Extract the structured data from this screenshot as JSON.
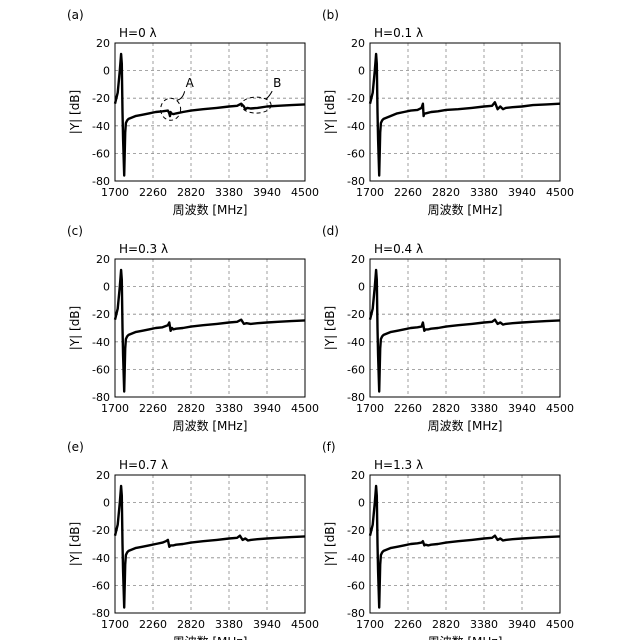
{
  "chart_data": [
    {
      "type": "line",
      "panel_label": "(a)",
      "title": "H=0 λ",
      "xlabel": "周波数 [MHz]",
      "ylabel": "|Y| [dB]",
      "xlim": [
        1700,
        4500
      ],
      "ylim": [
        -80,
        20
      ],
      "xticks": [
        "1700",
        "2260",
        "2820",
        "3380",
        "3940",
        "4500"
      ],
      "yticks": [
        "20",
        "0",
        "-20",
        "-40",
        "-60",
        "-80"
      ],
      "grid": true,
      "annotations": [
        {
          "label": "A",
          "x": 2520,
          "y": -28
        },
        {
          "label": "B",
          "x": 3780,
          "y": -25
        }
      ],
      "series": [
        {
          "x": [
            1700,
            1740,
            1770,
            1790,
            1800,
            1805,
            1810,
            1820,
            1835,
            1850,
            1860,
            1880,
            1900,
            1950,
            2000,
            2100,
            2200,
            2300,
            2400,
            2480,
            2500,
            2510,
            2520,
            2530,
            2560,
            2600,
            2700,
            2820,
            3000,
            3200,
            3380,
            3500,
            3560,
            3600,
            3620,
            3650,
            3700,
            3800,
            3940,
            4100,
            4300,
            4500
          ],
          "y": [
            -24,
            -16,
            0,
            12,
            5,
            -10,
            -30,
            -50,
            -76,
            -45,
            -38,
            -36,
            -35,
            -34,
            -33,
            -32,
            -31,
            -30,
            -29.5,
            -29,
            -31,
            -33,
            -30,
            -31,
            -31.5,
            -31,
            -30,
            -29,
            -28,
            -27,
            -26,
            -25.5,
            -24,
            -26,
            -28,
            -27,
            -27.5,
            -27,
            -26,
            -25.5,
            -25,
            -24.5
          ]
        }
      ]
    },
    {
      "type": "line",
      "panel_label": "(b)",
      "title": "H=0.1 λ",
      "xlabel": "周波数 [MHz]",
      "ylabel": "|Y| [dB]",
      "xlim": [
        1700,
        4500
      ],
      "ylim": [
        -80,
        20
      ],
      "xticks": [
        "1700",
        "2260",
        "2820",
        "3380",
        "3940",
        "4500"
      ],
      "yticks": [
        "20",
        "0",
        "-20",
        "-40",
        "-60",
        "-80"
      ],
      "grid": true,
      "series": [
        {
          "x": [
            1700,
            1740,
            1770,
            1790,
            1800,
            1805,
            1810,
            1820,
            1835,
            1850,
            1860,
            1880,
            1900,
            1950,
            2000,
            2100,
            2200,
            2300,
            2400,
            2460,
            2480,
            2490,
            2500,
            2520,
            2560,
            2600,
            2700,
            2820,
            3000,
            3200,
            3380,
            3500,
            3540,
            3580,
            3620,
            3660,
            3700,
            3800,
            3940,
            4100,
            4300,
            4500
          ],
          "y": [
            -24,
            -16,
            0,
            12,
            5,
            -10,
            -30,
            -50,
            -76,
            -45,
            -38,
            -36,
            -35,
            -34,
            -33,
            -31,
            -30,
            -29,
            -28.5,
            -27,
            -24,
            -33,
            -31,
            -31,
            -30.5,
            -30,
            -29.5,
            -28.5,
            -28,
            -27,
            -26,
            -25.5,
            -23,
            -28,
            -26,
            -28,
            -27,
            -26.5,
            -26,
            -25,
            -24.5,
            -24
          ]
        }
      ]
    },
    {
      "type": "line",
      "panel_label": "(c)",
      "title": "H=0.3 λ",
      "xlabel": "周波数 [MHz]",
      "ylabel": "|Y| [dB]",
      "xlim": [
        1700,
        4500
      ],
      "ylim": [
        -80,
        20
      ],
      "xticks": [
        "1700",
        "2260",
        "2820",
        "3380",
        "3940",
        "4500"
      ],
      "yticks": [
        "20",
        "0",
        "-20",
        "-40",
        "-60",
        "-80"
      ],
      "grid": true,
      "series": [
        {
          "x": [
            1700,
            1740,
            1770,
            1790,
            1800,
            1805,
            1810,
            1820,
            1835,
            1850,
            1860,
            1880,
            1900,
            1950,
            2000,
            2100,
            2200,
            2300,
            2400,
            2480,
            2500,
            2520,
            2540,
            2560,
            2600,
            2700,
            2820,
            3000,
            3200,
            3380,
            3500,
            3560,
            3600,
            3640,
            3700,
            3800,
            3940,
            4100,
            4300,
            4500
          ],
          "y": [
            -24,
            -16,
            0,
            12,
            5,
            -10,
            -30,
            -50,
            -76,
            -45,
            -38,
            -36,
            -35,
            -34,
            -33,
            -32,
            -31,
            -30,
            -29.5,
            -28,
            -26,
            -32,
            -30,
            -31,
            -30.5,
            -30,
            -29,
            -28,
            -27,
            -26,
            -25.5,
            -24,
            -27,
            -26.5,
            -27,
            -26.5,
            -26,
            -25.5,
            -25,
            -24.5
          ]
        }
      ]
    },
    {
      "type": "line",
      "panel_label": "(d)",
      "title": "H=0.4 λ",
      "xlabel": "周波数 [MHz]",
      "ylabel": "|Y| [dB]",
      "xlim": [
        1700,
        4500
      ],
      "ylim": [
        -80,
        20
      ],
      "xticks": [
        "1700",
        "2260",
        "2820",
        "3380",
        "3940",
        "4500"
      ],
      "yticks": [
        "20",
        "0",
        "-20",
        "-40",
        "-60",
        "-80"
      ],
      "grid": true,
      "series": [
        {
          "x": [
            1700,
            1740,
            1770,
            1790,
            1800,
            1805,
            1810,
            1820,
            1835,
            1850,
            1860,
            1880,
            1900,
            1950,
            2000,
            2100,
            2200,
            2300,
            2400,
            2460,
            2480,
            2500,
            2520,
            2560,
            2600,
            2700,
            2820,
            3000,
            3200,
            3380,
            3500,
            3540,
            3580,
            3620,
            3660,
            3700,
            3800,
            3940,
            4100,
            4300,
            4500
          ],
          "y": [
            -24,
            -16,
            0,
            12,
            5,
            -10,
            -30,
            -50,
            -76,
            -45,
            -38,
            -36,
            -35,
            -34,
            -33,
            -32,
            -31,
            -30,
            -29.5,
            -29,
            -26,
            -32,
            -31,
            -31,
            -30.5,
            -30,
            -29,
            -28,
            -27,
            -26,
            -25.5,
            -24,
            -27,
            -26,
            -27.5,
            -27,
            -26.5,
            -26,
            -25.5,
            -25,
            -24.5
          ]
        }
      ]
    },
    {
      "type": "line",
      "panel_label": "(e)",
      "title": "H=0.7 λ",
      "xlabel": "周波数 [MHz]",
      "ylabel": "|Y| [dB]",
      "xlim": [
        1700,
        4500
      ],
      "ylim": [
        -80,
        20
      ],
      "xticks": [
        "1700",
        "2260",
        "2820",
        "3380",
        "3940",
        "4500"
      ],
      "yticks": [
        "20",
        "0",
        "-20",
        "-40",
        "-60",
        "-80"
      ],
      "grid": true,
      "series": [
        {
          "x": [
            1700,
            1740,
            1770,
            1790,
            1800,
            1805,
            1810,
            1820,
            1835,
            1850,
            1860,
            1880,
            1900,
            1950,
            2000,
            2100,
            2200,
            2300,
            2400,
            2450,
            2480,
            2500,
            2520,
            2560,
            2600,
            2700,
            2820,
            3000,
            3200,
            3380,
            3500,
            3540,
            3580,
            3620,
            3660,
            3700,
            3800,
            3940,
            4100,
            4300,
            4500
          ],
          "y": [
            -24,
            -16,
            0,
            12,
            5,
            -10,
            -30,
            -50,
            -76,
            -45,
            -38,
            -36,
            -35,
            -34,
            -33,
            -32,
            -31,
            -30,
            -29,
            -28,
            -27,
            -32,
            -31,
            -31,
            -30.5,
            -30,
            -29,
            -28,
            -27,
            -26,
            -25.5,
            -24,
            -27,
            -26,
            -27.5,
            -27,
            -26.5,
            -26,
            -25.5,
            -25,
            -24.5
          ]
        }
      ]
    },
    {
      "type": "line",
      "panel_label": "(f)",
      "title": "H=1.3 λ",
      "xlabel": "周波数 [MHz]",
      "ylabel": "|Y| [dB]",
      "xlim": [
        1700,
        4500
      ],
      "ylim": [
        -80,
        20
      ],
      "xticks": [
        "1700",
        "2260",
        "2820",
        "3380",
        "3940",
        "4500"
      ],
      "yticks": [
        "20",
        "0",
        "-20",
        "-40",
        "-60",
        "-80"
      ],
      "grid": true,
      "series": [
        {
          "x": [
            1700,
            1740,
            1770,
            1790,
            1800,
            1805,
            1810,
            1820,
            1835,
            1850,
            1860,
            1880,
            1900,
            1950,
            2000,
            2100,
            2200,
            2300,
            2400,
            2460,
            2480,
            2500,
            2520,
            2560,
            2600,
            2700,
            2820,
            3000,
            3200,
            3380,
            3500,
            3540,
            3580,
            3620,
            3660,
            3700,
            3800,
            3940,
            4100,
            4300,
            4500
          ],
          "y": [
            -24,
            -16,
            0,
            12,
            5,
            -10,
            -30,
            -50,
            -76,
            -45,
            -38,
            -36,
            -35,
            -34,
            -33,
            -32,
            -31,
            -30,
            -29.5,
            -29,
            -28,
            -31,
            -30.5,
            -31,
            -30.5,
            -30,
            -29,
            -28,
            -27,
            -26,
            -25.5,
            -24,
            -27,
            -26,
            -27.5,
            -27,
            -26.5,
            -26,
            -25.5,
            -25,
            -24.5
          ]
        }
      ]
    }
  ]
}
